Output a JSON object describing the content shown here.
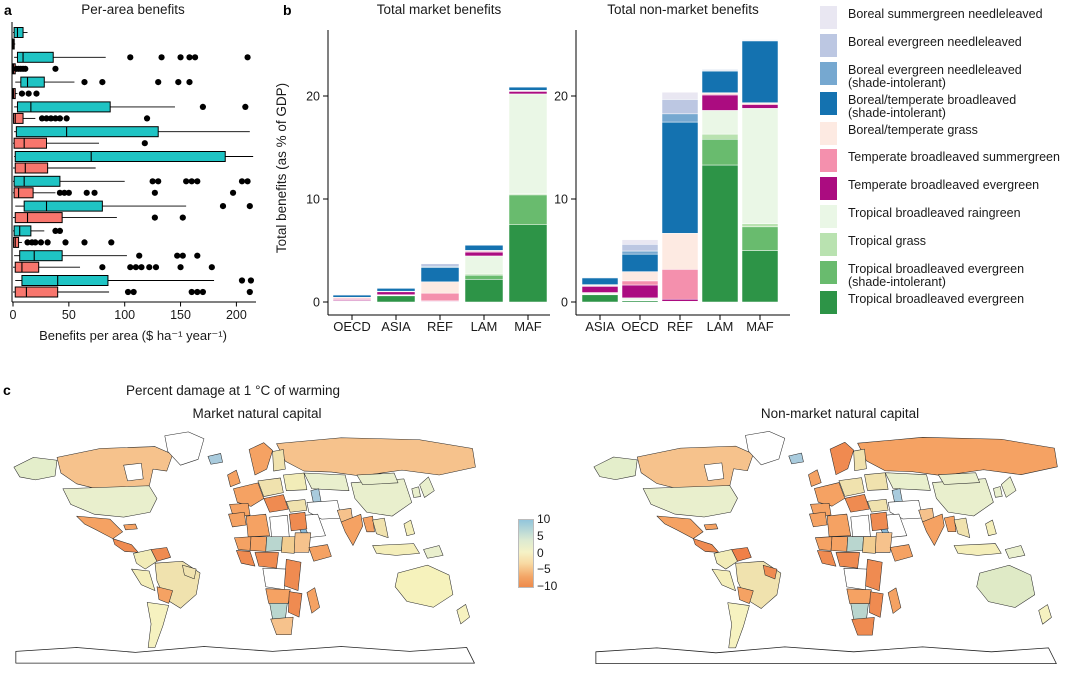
{
  "panels": {
    "a": {
      "label": "a"
    },
    "b": {
      "label": "b"
    },
    "c": {
      "label": "c"
    }
  },
  "legend": {
    "items": [
      {
        "label": "Boreal summergreen needleleaved",
        "label2": "",
        "color": "#e9e7f2"
      },
      {
        "label": "Boreal evergreen needleleaved",
        "label2": "",
        "color": "#bcc7e2"
      },
      {
        "label": "Boreal evergreen needleleaved",
        "label2": "(shade-intolerant)",
        "color": "#76a8d0"
      },
      {
        "label": "Boreal/temperate broadleaved",
        "label2": "(shade-intolerant)",
        "color": "#1472b0"
      },
      {
        "label": "Boreal/temperate grass",
        "label2": "",
        "color": "#fdeae2"
      },
      {
        "label": "Temperate broadleaved summergreen",
        "label2": "",
        "color": "#f490ad"
      },
      {
        "label": "Temperate broadleaved evergreen",
        "label2": "",
        "color": "#ab0c80"
      },
      {
        "label": "Tropical broadleaved raingreen",
        "label2": "",
        "color": "#eaf7e6"
      },
      {
        "label": "Tropical grass",
        "label2": "",
        "color": "#b9e2b0"
      },
      {
        "label": "Tropical broadleaved evergreen",
        "label2": "(shade-intolerant)",
        "color": "#69bb6e"
      },
      {
        "label": "Tropical broadleaved evergreen",
        "label2": "",
        "color": "#2d9447"
      }
    ]
  },
  "chart_data": [
    {
      "type": "boxplot",
      "title": "Per-area benefits",
      "xlabel": "Benefits per area ($ ha⁻¹ year⁻¹)",
      "xlim": [
        0,
        215
      ],
      "xticks": [
        0,
        50,
        100,
        150,
        200
      ],
      "colors": {
        "top_box": "#1fc4c4",
        "bottom_box": "#f8766d"
      },
      "groups": [
        {
          "top": {
            "w1": 0,
            "q1": 1,
            "med": 4,
            "q3": 9,
            "w2": 13,
            "out": []
          },
          "bottom": {
            "w1": 0,
            "q1": 0,
            "med": 0.3,
            "q3": 1,
            "w2": 2,
            "out": []
          }
        },
        {
          "top": {
            "w1": 1,
            "q1": 4,
            "med": 9,
            "q3": 36,
            "w2": 83,
            "out": [
              105,
              133,
              150,
              158,
              163,
              210
            ]
          },
          "bottom": {
            "w1": 0,
            "q1": 0,
            "med": 0.5,
            "q3": 2,
            "w2": 5,
            "out": [
              3,
              5,
              7,
              9,
              11,
              38
            ]
          }
        },
        {
          "top": {
            "w1": 2,
            "q1": 7,
            "med": 13,
            "q3": 28,
            "w2": 55,
            "out": [
              64,
              80,
              130,
              148,
              158
            ]
          },
          "bottom": {
            "w1": 0,
            "q1": 0,
            "med": 0.5,
            "q3": 2,
            "w2": 4,
            "out": [
              8,
              14,
              21
            ]
          }
        },
        {
          "top": {
            "w1": 1,
            "q1": 4,
            "med": 16,
            "q3": 87,
            "w2": 145,
            "out": [
              170,
              208
            ]
          },
          "bottom": {
            "w1": 0,
            "q1": 0.5,
            "med": 2,
            "q3": 9,
            "w2": 20,
            "out": [
              26,
              30,
              34,
              38,
              42,
              48,
              120
            ]
          }
        },
        {
          "top": {
            "w1": 1,
            "q1": 3,
            "med": 48,
            "q3": 130,
            "w2": 212,
            "out": []
          },
          "bottom": {
            "w1": 0,
            "q1": 1,
            "med": 10,
            "q3": 30,
            "w2": 77,
            "out": [
              118
            ]
          }
        },
        {
          "top": {
            "w1": 1,
            "q1": 2,
            "med": 70,
            "q3": 190,
            "w2": 215,
            "out": []
          },
          "bottom": {
            "w1": 0,
            "q1": 2,
            "med": 11,
            "q3": 31,
            "w2": 74,
            "out": []
          }
        },
        {
          "top": {
            "w1": 0,
            "q1": 1,
            "med": 10,
            "q3": 42,
            "w2": 100,
            "out": [
              125,
              130,
              155,
              160,
              165,
              205,
              210
            ]
          },
          "bottom": {
            "w1": 0,
            "q1": 1,
            "med": 5,
            "q3": 18,
            "w2": 38,
            "out": [
              42,
              46,
              50,
              66,
              73,
              127,
              197
            ]
          }
        },
        {
          "top": {
            "w1": 2,
            "q1": 10,
            "med": 30,
            "q3": 80,
            "w2": 155,
            "out": [
              188,
              212
            ]
          },
          "bottom": {
            "w1": 0,
            "q1": 2,
            "med": 13,
            "q3": 44,
            "w2": 93,
            "out": [
              127,
              152
            ]
          }
        },
        {
          "top": {
            "w1": 0,
            "q1": 1,
            "med": 6,
            "q3": 16,
            "w2": 28,
            "out": [
              38,
              42
            ]
          },
          "bottom": {
            "w1": 0,
            "q1": 0.5,
            "med": 2,
            "q3": 5,
            "w2": 8,
            "out": [
              13,
              17,
              20,
              25,
              31,
              47,
              64,
              88
            ]
          }
        },
        {
          "top": {
            "w1": 1,
            "q1": 6,
            "med": 19,
            "q3": 44,
            "w2": 102,
            "out": [
              113,
              147,
              152,
              165
            ]
          },
          "bottom": {
            "w1": 0,
            "q1": 2,
            "med": 8,
            "q3": 23,
            "w2": 60,
            "out": [
              80,
              105,
              110,
              115,
              122,
              128,
              150,
              178
            ]
          }
        },
        {
          "top": {
            "w1": 2,
            "q1": 8,
            "med": 40,
            "q3": 85,
            "w2": 180,
            "out": [
              205,
              213
            ]
          },
          "bottom": {
            "w1": 0,
            "q1": 2,
            "med": 12,
            "q3": 40,
            "w2": 86,
            "out": [
              103,
              108,
              160,
              165,
              170,
              212
            ]
          }
        }
      ]
    },
    {
      "type": "bar",
      "title": "Total market benefits",
      "ylabel": "Total benefits (as % of GDP)",
      "categories": [
        "OECD",
        "ASIA",
        "REF",
        "LAM",
        "MAF"
      ],
      "yticks": [
        0,
        10,
        20
      ],
      "ylim": [
        0,
        26.5
      ],
      "series": [
        {
          "name": "Tropical broadleaved evergreen",
          "color": "#2d9447",
          "values": [
            0.05,
            0.6,
            0.02,
            2.2,
            7.5
          ]
        },
        {
          "name": "Tropical broadleaved evergreen (shade-intolerant)",
          "color": "#69bb6e",
          "values": [
            0.02,
            0.04,
            0,
            0.4,
            2.9
          ]
        },
        {
          "name": "Tropical grass",
          "color": "#b9e2b0",
          "values": [
            0.02,
            0.02,
            0,
            0.12,
            0.1
          ]
        },
        {
          "name": "Tropical broadleaved raingreen",
          "color": "#eaf7e6",
          "values": [
            0.05,
            0.05,
            0.03,
            1.75,
            9.7
          ]
        },
        {
          "name": "Temperate broadleaved evergreen",
          "color": "#ab0c80",
          "values": [
            0.1,
            0.28,
            0.06,
            0.38,
            0.25
          ]
        },
        {
          "name": "Temperate broadleaved summergreen",
          "color": "#f490ad",
          "values": [
            0.12,
            0.03,
            0.75,
            0.1,
            0.05
          ]
        },
        {
          "name": "Boreal/temperate grass",
          "color": "#fdeae2",
          "values": [
            0.1,
            0.03,
            1.1,
            0.06,
            0.05
          ]
        },
        {
          "name": "Boreal/temperate broadleaved (shade-intolerant)",
          "color": "#1472b0",
          "values": [
            0.22,
            0.28,
            1.4,
            0.5,
            0.32
          ]
        },
        {
          "name": "Boreal evergreen needleleaved (shade-intolerant)",
          "color": "#76a8d0",
          "values": [
            0.04,
            0.03,
            0.1,
            0.04,
            0.02
          ]
        },
        {
          "name": "Boreal evergreen needleleaved",
          "color": "#bcc7e2",
          "values": [
            0.05,
            0.04,
            0.25,
            0.04,
            0.03
          ]
        },
        {
          "name": "Boreal summergreen needleleaved",
          "color": "#e9e7f2",
          "values": [
            0.03,
            0.02,
            0.06,
            0.02,
            0.02
          ]
        }
      ]
    },
    {
      "type": "bar",
      "title": "Total non-market benefits",
      "ylabel": "",
      "categories": [
        "ASIA",
        "OECD",
        "REF",
        "LAM",
        "MAF"
      ],
      "yticks": [
        0,
        10,
        20
      ],
      "ylim": [
        0,
        26.5
      ],
      "series": [
        {
          "name": "Tropical broadleaved evergreen",
          "color": "#2d9447",
          "values": [
            0.7,
            0.12,
            0.02,
            13.3,
            5.0
          ]
        },
        {
          "name": "Tropical broadleaved evergreen (shade-intolerant)",
          "color": "#69bb6e",
          "values": [
            0.06,
            0.03,
            0,
            2.5,
            2.3
          ]
        },
        {
          "name": "Tropical grass",
          "color": "#b9e2b0",
          "values": [
            0.04,
            0.05,
            0,
            0.5,
            0.3
          ]
        },
        {
          "name": "Tropical broadleaved raingreen",
          "color": "#eaf7e6",
          "values": [
            0.12,
            0.2,
            0.05,
            2.3,
            11.2
          ]
        },
        {
          "name": "Temperate broadleaved evergreen",
          "color": "#ab0c80",
          "values": [
            0.6,
            1.25,
            0.2,
            1.5,
            0.35
          ]
        },
        {
          "name": "Temperate broadleaved summergreen",
          "color": "#f490ad",
          "values": [
            0.05,
            0.4,
            2.9,
            0.1,
            0.1
          ]
        },
        {
          "name": "Boreal/temperate grass",
          "color": "#fdeae2",
          "values": [
            0.12,
            0.9,
            3.5,
            0.12,
            0.1
          ]
        },
        {
          "name": "Boreal/temperate broadleaved (shade-intolerant)",
          "color": "#1472b0",
          "values": [
            0.65,
            1.7,
            10.8,
            2.1,
            6.0
          ]
        },
        {
          "name": "Boreal evergreen needleleaved (shade-intolerant)",
          "color": "#76a8d0",
          "values": [
            0.04,
            0.3,
            0.8,
            0.06,
            0.05
          ]
        },
        {
          "name": "Boreal evergreen needleleaved",
          "color": "#bcc7e2",
          "values": [
            0.06,
            0.65,
            1.4,
            0.1,
            0.08
          ]
        },
        {
          "name": "Boreal summergreen needleleaved",
          "color": "#e9e7f2",
          "values": [
            0.03,
            0.45,
            0.7,
            0.04,
            0.05
          ]
        }
      ]
    },
    {
      "type": "choropleth",
      "suptitle": "Percent damage at 1 °C of warming",
      "colorbar": {
        "ticks": [
          "10",
          "5",
          "0",
          "−5",
          "−10"
        ],
        "gradient": [
          "#92c5dc",
          "#dcead2",
          "#f5f2c6",
          "#f8d9a2",
          "#f3a465",
          "#ee8a4b"
        ]
      },
      "base_colors": {
        "russia": "#f6c28c",
        "canada": "#f6c28c",
        "hudson": "#ffffff",
        "alaska": "#e4eecb",
        "greenland": "#ffffff",
        "iceland": "#a9cbdd",
        "usa": "#e9efcd",
        "mexico": "#f5a263",
        "camerica": "#ef8b51",
        "cuba": "#f5a263",
        "colombia": "#f2ecb8",
        "venezuela": "#ef8b51",
        "peru": "#f4eeba",
        "brazil": "#f0e2ae",
        "brazil_ne": "#f0e2ae",
        "bolivia": "#f5a263",
        "argentina": "#f6f2c0",
        "uk": "#f5a263",
        "norway_sweden": "#f5a263",
        "finland": "#f0e2ae",
        "weurope": "#f5a263",
        "iberia": "#f5a263",
        "ceurope": "#f0e2ae",
        "balkans": "#ef8b51",
        "eeurope": "#f2ecb8",
        "kazakh": "#e9efcd",
        "caspian": "#a9cbdd",
        "turkey": "#f0e2ae",
        "iraq_iran": "#ffffff",
        "saudi": "#ffffff",
        "redsea": "#8fbcd8",
        "pakistan": "#f6c28c",
        "india": "#f5a263",
        "china": "#e9efcd",
        "mongolia": "#e9efcd",
        "myanmar": "#f5a263",
        "indochina": "#f0e2ae",
        "indonesia": "#f4eeba",
        "philippines": "#f4eeba",
        "japan": "#e9efcd",
        "korea": "#e9efcd",
        "png": "#e9efcd",
        "australia": "#f6f2bc",
        "nz": "#f6f2c0",
        "morocco": "#f5a263",
        "algeria": "#f5a263",
        "libya": "#ffffff",
        "egypt": "#ef8b51",
        "mauritania": "#f5a263",
        "mali": "#f5a263",
        "niger": "#b9d6cf",
        "chad": "#f2cd90",
        "sudan": "#f6c28c",
        "wafrica": "#ef8b51",
        "nigeria": "#ef8b51",
        "ethiopia": "#f5a263",
        "congo": "#ffffff",
        "eafrica": "#ef8b51",
        "angola": "#f5a263",
        "botswana": "#b9d6cf",
        "safrica": "#f6c28c",
        "mozambique": "#ef8b51",
        "madagascar": "#f5a263",
        "antarctica": "#ffffff"
      },
      "maps": [
        {
          "title": "Market natural capital",
          "overrides": {}
        },
        {
          "title": "Non-market natural capital",
          "overrides": {
            "russia": "#f5a263",
            "norway_sweden": "#f08a50",
            "australia": "#dfeac6",
            "safrica": "#ef8b51",
            "brazil_ne": "#ef8b51",
            "venezuela": "#f08048",
            "eeurope": "#f0e2ae"
          }
        }
      ]
    }
  ]
}
